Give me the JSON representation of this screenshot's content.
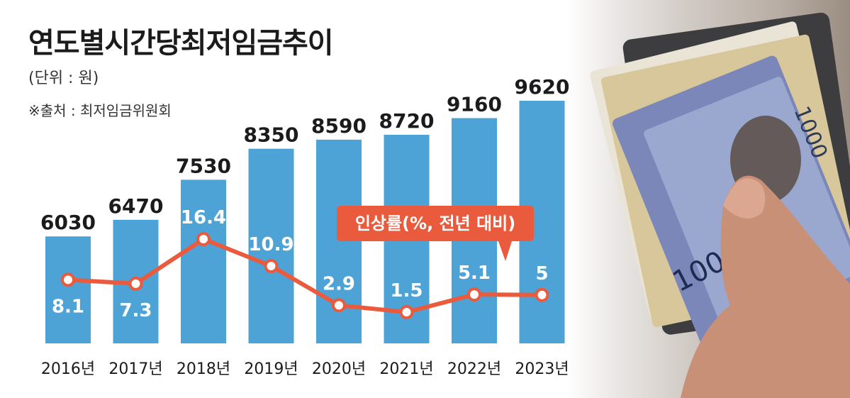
{
  "header": {
    "title": "연도별시간당최저임금추이",
    "unit": "(단위 : 원)",
    "source": "※출처 : 최저임금위원회"
  },
  "legend_callout": "인상률(%, 전년 대비)",
  "colors": {
    "bar": "#4ea3d6",
    "line": "#ea5a3c",
    "line_marker_fill": "#ffffff"
  },
  "photo": {
    "banknote_denomination": "1000"
  },
  "chart_data": {
    "type": "bar",
    "categories": [
      "2016년",
      "2017년",
      "2018년",
      "2019년",
      "2020년",
      "2021년",
      "2022년",
      "2023년"
    ],
    "series": [
      {
        "name": "",
        "type": "bar",
        "values": [
          6030,
          6470,
          7530,
          8350,
          8590,
          8720,
          9160,
          9620
        ]
      },
      {
        "name": "인상률(%, 전년 대비)",
        "type": "line",
        "values": [
          8.1,
          7.3,
          16.4,
          10.9,
          2.9,
          1.5,
          5.1,
          5
        ]
      }
    ],
    "grid": false
  }
}
